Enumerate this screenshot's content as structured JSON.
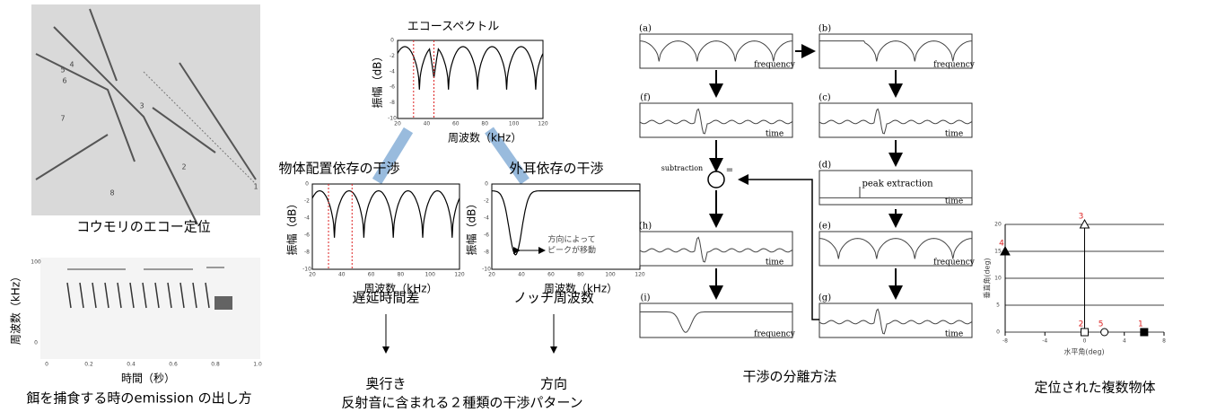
{
  "bat_photo": {
    "caption": "コウモリのエコー定位",
    "labels": [
      "1",
      "2",
      "3",
      "4",
      "5",
      "6",
      "7",
      "8"
    ]
  },
  "spectrogram": {
    "y_label": "周波数（kHz）",
    "x_label": "時間（秒）",
    "caption": "餌を捕食する時のemission の出し方",
    "yticks": [
      "100",
      "0"
    ],
    "xticks": [
      "0",
      "0.2",
      "0.4",
      "0.6",
      "0.8",
      "1.0"
    ]
  },
  "echo_spectrum": {
    "title": "エコースペクトル",
    "y_label": "振幅（dB）",
    "x_label": "周波数（kHz）",
    "yticks": [
      "0",
      "-2",
      "-4",
      "-6",
      "-8",
      "-10"
    ],
    "xticks": [
      "20",
      "40",
      "60",
      "80",
      "100",
      "120"
    ]
  },
  "placement_interference": {
    "title": "物体配置依存の干渉",
    "y_label": "振幅（dB）",
    "x_label": "周波数（kHz）",
    "yticks": [
      "0",
      "-2",
      "-4",
      "-6",
      "-8",
      "-10"
    ],
    "xticks": [
      "20",
      "40",
      "60",
      "80",
      "100",
      "120"
    ],
    "result": "遅延時間差",
    "meaning": "奥行き"
  },
  "pinna_interference": {
    "title": "外耳依存の干渉",
    "y_label": "振幅（dB）",
    "x_label": "周波数（kHz）",
    "yticks": [
      "0",
      "-2",
      "-4",
      "-6",
      "-8",
      "-10"
    ],
    "xticks": [
      "20",
      "40",
      "60",
      "80",
      "100",
      "120"
    ],
    "annotation": [
      "方向によって",
      "ピークが移動"
    ],
    "result": "ノッチ周波数",
    "meaning": "方向"
  },
  "interference_caption": "反射音に含まれる２種類の干渉パターン",
  "separation": {
    "panels": [
      {
        "label": "(a)",
        "axis": "frequency"
      },
      {
        "label": "(f)",
        "axis": "time"
      },
      {
        "label": "(h)",
        "axis": "time"
      },
      {
        "label": "(i)",
        "axis": "frequency"
      },
      {
        "label": "(b)",
        "axis": "frequency"
      },
      {
        "label": "(c)",
        "axis": "time"
      },
      {
        "label": "(d)",
        "axis": "time"
      },
      {
        "label": "(e)",
        "axis": "frequency"
      },
      {
        "label": "(g)",
        "axis": "time"
      }
    ],
    "subtraction": "subtraction",
    "peak_extraction": "peak extraction",
    "equals": "=",
    "caption": "干渉の分離方法"
  },
  "localization": {
    "y_label": "垂直角(deg)",
    "x_label": "水平角(deg)",
    "xlim": [
      -8,
      8
    ],
    "ylim": [
      0,
      20
    ],
    "xticks": [
      -8,
      -4,
      0,
      4,
      8
    ],
    "yticks": [
      0,
      5,
      10,
      15,
      20
    ],
    "points": [
      {
        "label": "1",
        "x": 6,
        "y": 0
      },
      {
        "label": "2",
        "x": 0,
        "y": 0
      },
      {
        "label": "3",
        "x": 0,
        "y": 20
      },
      {
        "label": "4",
        "x": -8,
        "y": 15
      },
      {
        "label": "5",
        "x": 2,
        "y": 0
      }
    ],
    "caption": "定位された複数物体"
  }
}
